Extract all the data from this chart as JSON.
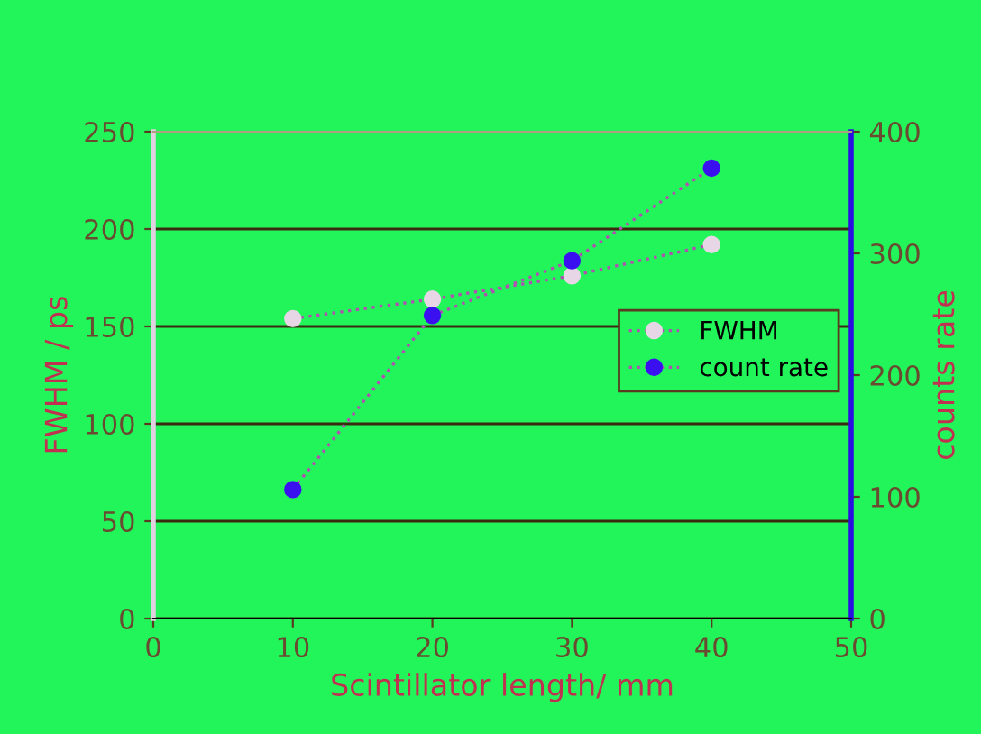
{
  "chart_data": {
    "type": "line",
    "xlabel": "Scintillator length/ mm",
    "ylabel": "FWHM / ps",
    "y2label": "counts rate",
    "x": [
      10,
      20,
      30,
      40
    ],
    "series": [
      {
        "name": "FWHM",
        "color": "#e6d6e6",
        "values": [
          154,
          164,
          176,
          192
        ]
      },
      {
        "name": "count rate",
        "color": "#3a10f0",
        "values": [
          106,
          249,
          294,
          370
        ],
        "axis": "y2"
      }
    ],
    "xlim": [
      0,
      50
    ],
    "xticks": [
      0,
      10,
      20,
      30,
      40,
      50
    ],
    "ylim": [
      0,
      250
    ],
    "yticks": [
      0,
      50,
      100,
      150,
      200,
      250
    ],
    "y2lim": [
      0,
      400
    ],
    "y2ticks": [
      0,
      100,
      200,
      300,
      400
    ],
    "grid": "y",
    "legend": "right",
    "marker": "circle",
    "line_style": "dotted"
  }
}
